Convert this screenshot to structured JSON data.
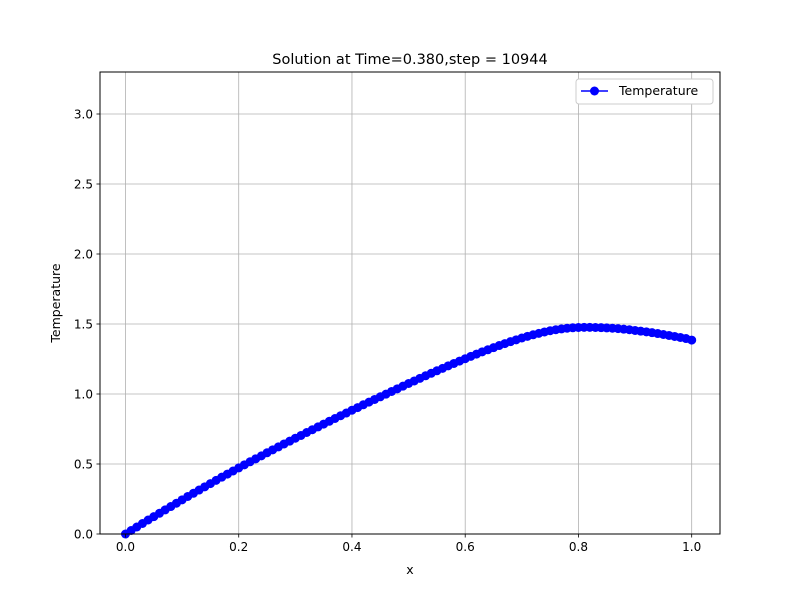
{
  "chart_data": {
    "type": "line",
    "title": "Solution at Time=0.380,step = 10944",
    "xlabel": "x",
    "ylabel": "Temperature",
    "xlim": [
      -0.045,
      1.05
    ],
    "ylim": [
      0.0,
      3.3
    ],
    "xticks": [
      "0.0",
      "0.2",
      "0.4",
      "0.6",
      "0.8",
      "1.0"
    ],
    "xtick_values": [
      0.0,
      0.2,
      0.4,
      0.6,
      0.8,
      1.0
    ],
    "yticks": [
      "0.0",
      "0.5",
      "1.0",
      "1.5",
      "2.0",
      "2.5",
      "3.0"
    ],
    "ytick_values": [
      0.0,
      0.5,
      1.0,
      1.5,
      2.0,
      2.5,
      3.0
    ],
    "grid": true,
    "legend_placement": "top-right",
    "series": [
      {
        "name": "Temperature",
        "color": "#0000ff",
        "marker": "circle",
        "x": [
          0.0,
          0.01,
          0.02,
          0.03,
          0.04,
          0.05,
          0.06,
          0.07,
          0.08,
          0.09,
          0.1,
          0.11,
          0.12,
          0.13,
          0.14,
          0.15,
          0.16,
          0.17,
          0.18,
          0.19,
          0.2,
          0.21,
          0.22,
          0.23,
          0.24,
          0.25,
          0.26,
          0.27,
          0.28,
          0.29,
          0.3,
          0.31,
          0.32,
          0.33,
          0.34,
          0.35,
          0.36,
          0.37,
          0.38,
          0.39,
          0.4,
          0.41,
          0.42,
          0.43,
          0.44,
          0.45,
          0.46,
          0.47,
          0.48,
          0.49,
          0.5,
          0.51,
          0.52,
          0.53,
          0.54,
          0.55,
          0.56,
          0.57,
          0.58,
          0.59,
          0.6,
          0.61,
          0.62,
          0.63,
          0.64,
          0.65,
          0.66,
          0.67,
          0.68,
          0.69,
          0.7,
          0.71,
          0.72,
          0.73,
          0.74,
          0.75,
          0.76,
          0.77,
          0.78,
          0.79,
          0.8,
          0.81,
          0.82,
          0.83,
          0.84,
          0.85,
          0.86,
          0.87,
          0.88,
          0.89,
          0.9,
          0.91,
          0.92,
          0.93,
          0.94,
          0.95,
          0.96,
          0.97,
          0.98,
          0.99,
          1.0
        ],
        "y": [
          0.0,
          0.025,
          0.05,
          0.075,
          0.1,
          0.124,
          0.148,
          0.172,
          0.196,
          0.22,
          0.244,
          0.268,
          0.291,
          0.314,
          0.337,
          0.36,
          0.383,
          0.406,
          0.428,
          0.45,
          0.472,
          0.494,
          0.516,
          0.537,
          0.558,
          0.58,
          0.601,
          0.622,
          0.643,
          0.663,
          0.684,
          0.704,
          0.725,
          0.745,
          0.765,
          0.785,
          0.805,
          0.825,
          0.845,
          0.864,
          0.884,
          0.903,
          0.923,
          0.942,
          0.961,
          0.98,
          0.999,
          1.018,
          1.037,
          1.056,
          1.075,
          1.093,
          1.112,
          1.13,
          1.148,
          1.166,
          1.183,
          1.201,
          1.218,
          1.235,
          1.252,
          1.269,
          1.285,
          1.301,
          1.316,
          1.331,
          1.346,
          1.36,
          1.374,
          1.387,
          1.4,
          1.412,
          1.423,
          1.433,
          1.443,
          1.452,
          1.459,
          1.465,
          1.47,
          1.473,
          1.475,
          1.476,
          1.476,
          1.475,
          1.474,
          1.472,
          1.47,
          1.467,
          1.463,
          1.459,
          1.454,
          1.449,
          1.444,
          1.438,
          1.432,
          1.425,
          1.418,
          1.411,
          1.404,
          1.396,
          1.385
        ]
      }
    ]
  }
}
